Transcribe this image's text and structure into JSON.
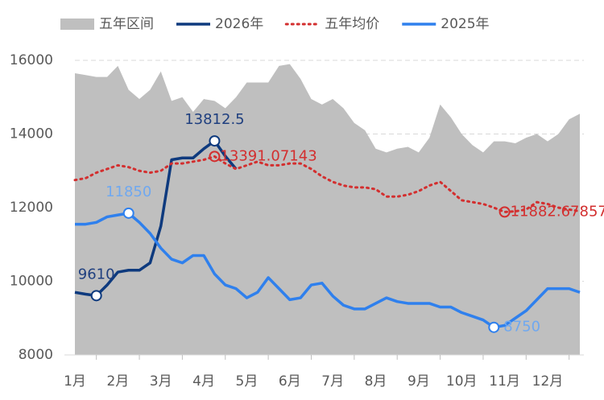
{
  "chart_data": {
    "type": "line",
    "categories": [
      "1月",
      null,
      null,
      null,
      "2月",
      null,
      null,
      null,
      "3月",
      null,
      null,
      null,
      "4月",
      null,
      null,
      null,
      "5月",
      null,
      null,
      null,
      "6月",
      null,
      null,
      null,
      "7月",
      null,
      null,
      null,
      "8月",
      null,
      null,
      null,
      "9月",
      null,
      null,
      null,
      "10月",
      null,
      null,
      null,
      "11月",
      null,
      null,
      null,
      "12月",
      null,
      null,
      null
    ],
    "ylim": [
      8000,
      16000
    ],
    "yticks": [
      8000,
      10000,
      12000,
      14000,
      16000
    ],
    "grid": true,
    "legend": "top",
    "series": [
      {
        "name": "五年区间",
        "style": "area",
        "color": "#bfbfbf",
        "values": [
          15650,
          15600,
          15550,
          15550,
          15850,
          15200,
          14950,
          15200,
          15700,
          14900,
          15000,
          14600,
          14950,
          14900,
          14700,
          15000,
          15400,
          15400,
          15400,
          15850,
          15900,
          15500,
          14950,
          14800,
          14950,
          14700,
          14300,
          14100,
          13600,
          13500,
          13600,
          13650,
          13500,
          13900,
          14800,
          14450,
          14000,
          13700,
          13500,
          13800,
          13800,
          13750,
          13900,
          14000,
          13800,
          14000,
          14400,
          14550
        ]
      },
      {
        "name": "2026年",
        "style": "line",
        "color": "#0e3a7e",
        "label_color": "#1f3f7f",
        "values": [
          9700,
          9650,
          9610,
          9900,
          10250,
          10300,
          10300,
          10500,
          11500,
          13300,
          13350,
          13350,
          13600,
          13812.5,
          13400,
          13050,
          null,
          null,
          null,
          null,
          null,
          null,
          null,
          null,
          null,
          null,
          null,
          null,
          null,
          null,
          null,
          null,
          null,
          null,
          null,
          null,
          null,
          null,
          null,
          null,
          null,
          null,
          null,
          null,
          null,
          null,
          null,
          null
        ],
        "labeled_points": [
          2,
          13
        ]
      },
      {
        "name": "五年均价",
        "style": "dotted",
        "color": "#d32f2f",
        "label_color": "#d32f2f",
        "values": [
          12750,
          12800,
          12950,
          13050,
          13150,
          13100,
          13000,
          12950,
          13000,
          13200,
          13200,
          13250,
          13300,
          13391.07143,
          13200,
          13050,
          13150,
          13250,
          13150,
          13150,
          13200,
          13200,
          13050,
          12850,
          12700,
          12600,
          12550,
          12550,
          12500,
          12300,
          12300,
          12350,
          12450,
          12600,
          12700,
          12450,
          12200,
          12150,
          12100,
          12000,
          11882.67857,
          11900,
          11950,
          12150,
          12100,
          12000,
          11950,
          11900
        ],
        "labeled_points": [
          13,
          40
        ]
      },
      {
        "name": "2025年",
        "style": "line",
        "color": "#2f80ed",
        "label_color": "#6fa8f0",
        "values": [
          11550,
          11550,
          11600,
          11750,
          11800,
          11850,
          11600,
          11300,
          10900,
          10600,
          10500,
          10700,
          10700,
          10200,
          9900,
          9800,
          9550,
          9700,
          10100,
          9800,
          9500,
          9550,
          9900,
          9950,
          9600,
          9350,
          9250,
          9250,
          9400,
          9550,
          9450,
          9400,
          9400,
          9400,
          9300,
          9300,
          9150,
          9050,
          8950,
          8750,
          8800,
          9000,
          9200,
          9500,
          9800,
          9800,
          9800,
          9700
        ],
        "labeled_points": [
          5,
          39
        ]
      }
    ]
  }
}
